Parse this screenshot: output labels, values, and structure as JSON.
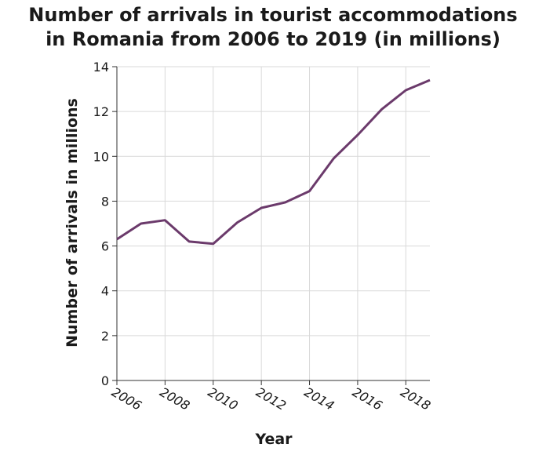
{
  "chart_data": {
    "type": "line",
    "title_lines": [
      "Number of arrivals in tourist accommodations",
      "in Romania from 2006 to 2019 (in millions)"
    ],
    "xlabel": "Year",
    "ylabel": "Number of arrivals in millions",
    "x": [
      2006,
      2007,
      2008,
      2009,
      2010,
      2011,
      2012,
      2013,
      2014,
      2015,
      2016,
      2017,
      2018,
      2019
    ],
    "series": [
      {
        "values": [
          6.3,
          7.0,
          7.15,
          6.2,
          6.1,
          7.05,
          7.7,
          7.95,
          8.45,
          9.9,
          10.95,
          12.1,
          12.95,
          13.4
        ]
      }
    ],
    "xlim": [
      2006,
      2019
    ],
    "ylim": [
      0,
      14
    ],
    "x_ticks": [
      2006,
      2008,
      2010,
      2012,
      2014,
      2016,
      2018
    ],
    "y_ticks": [
      0,
      2,
      4,
      6,
      8,
      10,
      12,
      14
    ],
    "grid": true,
    "line_color": "#6b3a6b"
  }
}
